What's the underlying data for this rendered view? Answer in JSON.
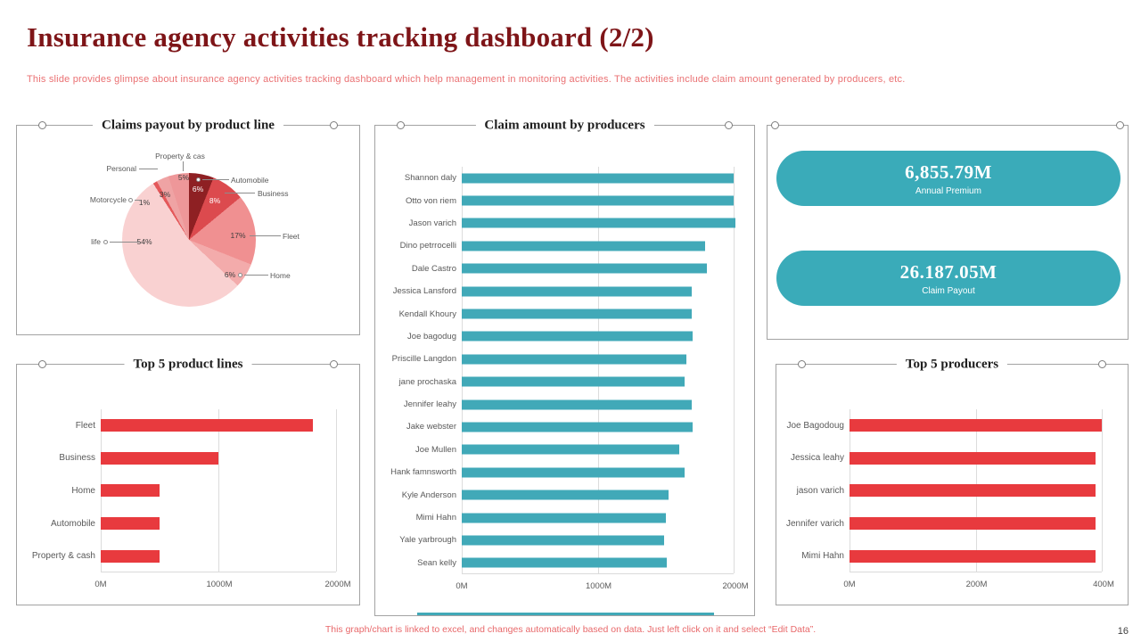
{
  "header": {
    "title": "Insurance agency activities tracking dashboard (2/2)",
    "subtitle": "This slide provides glimpse about insurance agency activities tracking dashboard which help management in monitoring activities. The activities include claim amount generated by producers, etc."
  },
  "kpi": {
    "annual_premium": {
      "value": "6,855.79M",
      "label": "Annual Premium"
    },
    "claim_payout": {
      "value": "26.187.05M",
      "label": "Claim Payout"
    }
  },
  "footer": {
    "note": "This graph/chart is linked to excel, and changes automatically based on data. Just left click on it and select “Edit Data”.",
    "page_number": "16"
  },
  "colors": {
    "accent_red": "#e83a3e",
    "teal": "#41a9b8",
    "kpi_teal": "#3aabb9",
    "title_maroon": "#7e1518",
    "subtitle_red": "#ea7173"
  },
  "chart_data": [
    {
      "id": "claims-payout-pie",
      "type": "pie",
      "title": "Claims payout by product line",
      "slices": [
        {
          "label": "Automobile",
          "pct": 6,
          "pct_label": "6%",
          "color": "#8e2023"
        },
        {
          "label": "Business",
          "pct": 8,
          "pct_label": "8%",
          "color": "#dc4a4e"
        },
        {
          "label": "Fleet",
          "pct": 17,
          "pct_label": "17%",
          "color": "#f09091"
        },
        {
          "label": "Home",
          "pct": 6,
          "pct_label": "6%",
          "color": "#f3abab"
        },
        {
          "label": "life",
          "pct": 54,
          "pct_label": "54%",
          "color": "#f9d1d1"
        },
        {
          "label": "Motorcycle",
          "pct": 1,
          "pct_label": "1%",
          "color": "#e4585a"
        },
        {
          "label": "Personal",
          "pct": 3,
          "pct_label": "3%",
          "color": "#efa3a4"
        },
        {
          "label": "Property & cas",
          "pct": 5,
          "pct_label": "5%",
          "color": "#ee9799"
        }
      ]
    },
    {
      "id": "claim-amount-by-producers",
      "type": "bar",
      "orientation": "horizontal",
      "title": "Claim amount by producers",
      "categories": [
        "Shannon daly",
        "Otto von riem",
        "Jason varich",
        "Dino petrrocelli",
        "Dale Castro",
        "Jessica Lansford",
        "Kendall Khoury",
        "Joe bagodug",
        "Priscille Langdon",
        "jane prochaska",
        "Jennifer leahy",
        "Jake webster",
        "Joe Mullen",
        "Hank famnsworth",
        "Kyle Anderson",
        "Mimi Hahn",
        "Yale yarbrough",
        "Sean kelly"
      ],
      "values": [
        2000,
        2000,
        2010,
        1790,
        1800,
        1690,
        1690,
        1700,
        1650,
        1640,
        1690,
        1700,
        1600,
        1640,
        1520,
        1500,
        1490,
        1510
      ],
      "xlim": [
        0,
        2000
      ],
      "ticks": [
        "0M",
        "1000M",
        "2000M"
      ],
      "bar_color": "#41a9b8",
      "grid": true,
      "legend": "none"
    },
    {
      "id": "top-5-product-lines",
      "type": "bar",
      "orientation": "horizontal",
      "title": "Top 5 product lines",
      "categories": [
        "Fleet",
        "Business",
        "Home",
        "Automobile",
        "Property & cash"
      ],
      "values": [
        1800,
        1000,
        500,
        500,
        500
      ],
      "xlim": [
        0,
        2000
      ],
      "ticks": [
        "0M",
        "1000M",
        "2000M"
      ],
      "bar_color": "#e83a3e",
      "grid": true,
      "legend": "none"
    },
    {
      "id": "top-5-producers",
      "type": "bar",
      "orientation": "horizontal",
      "title": "Top 5 producers",
      "categories": [
        "Joe Bagodoug",
        "Jessica leahy",
        "jason varich",
        "Jennifer varich",
        "Mimi Hahn"
      ],
      "values": [
        400,
        390,
        390,
        390,
        390
      ],
      "xlim": [
        0,
        400
      ],
      "ticks": [
        "0M",
        "200M",
        "400M"
      ],
      "bar_color": "#e83a3e",
      "grid": true,
      "legend": "none"
    }
  ]
}
